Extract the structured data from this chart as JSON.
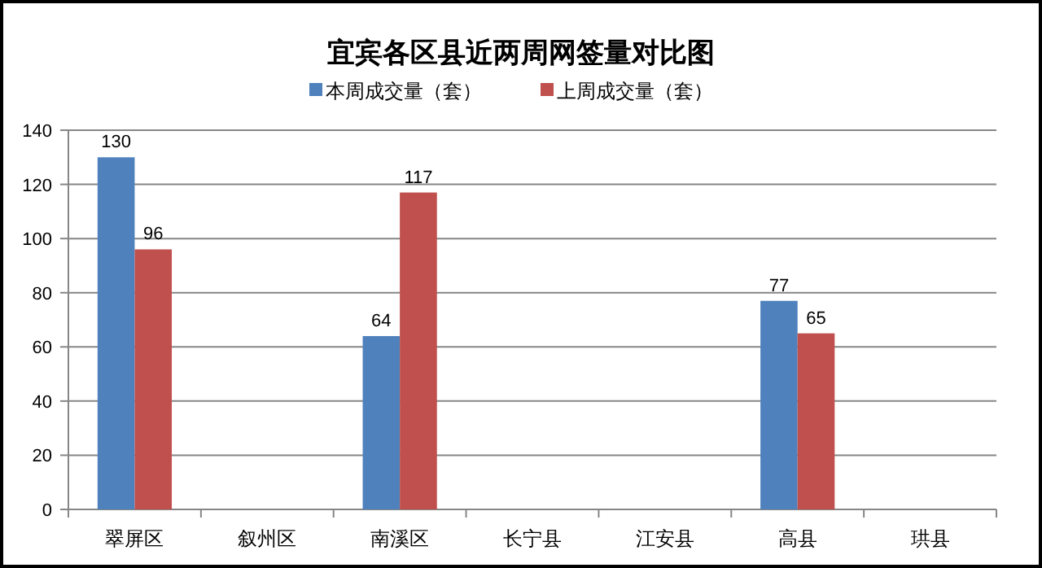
{
  "chart_data": {
    "type": "bar",
    "title": "宜宾各区县近两周网签量对比图",
    "categories": [
      "翠屏区",
      "叙州区",
      "南溪区",
      "长宁县",
      "江安县",
      "高县",
      "珙县"
    ],
    "series": [
      {
        "name": "本周成交量（套）",
        "color": "#4f81bd",
        "values": [
          130,
          null,
          64,
          null,
          null,
          77,
          null
        ]
      },
      {
        "name": "上周成交量（套）",
        "color": "#c0504d",
        "values": [
          96,
          null,
          117,
          null,
          null,
          65,
          null
        ]
      }
    ],
    "ylim": [
      0,
      140
    ],
    "yticks": [
      0,
      20,
      40,
      60,
      80,
      100,
      120,
      140
    ],
    "grid": "y",
    "legend": "top",
    "data_labels": true
  }
}
